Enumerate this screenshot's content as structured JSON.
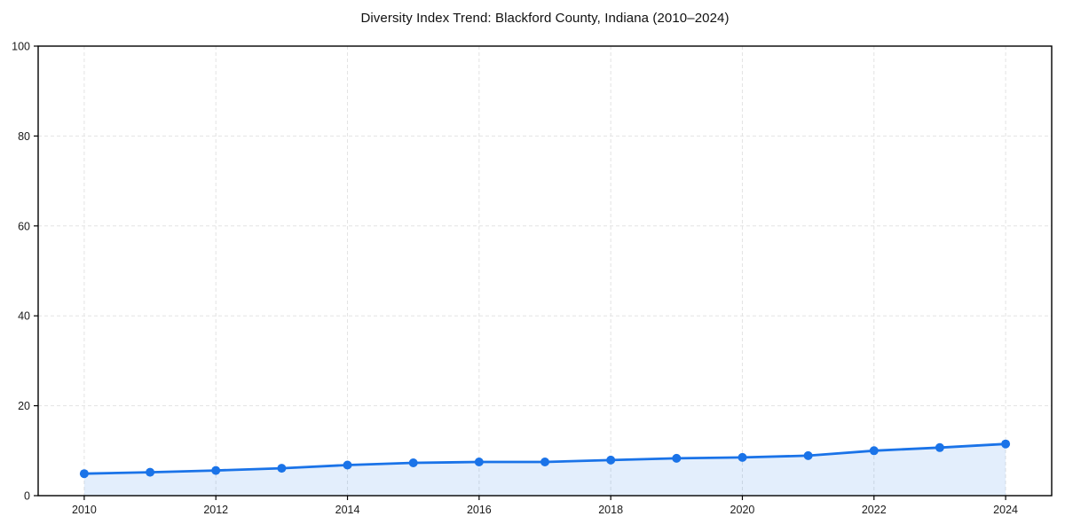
{
  "chart_data": {
    "type": "line",
    "title": "Diversity Index Trend: Blackford County, Indiana (2010–2024)",
    "series_name": "Diversity Index",
    "x": [
      2010,
      2011,
      2012,
      2013,
      2014,
      2015,
      2016,
      2017,
      2018,
      2019,
      2020,
      2021,
      2022,
      2023,
      2024
    ],
    "values": [
      4.9,
      5.2,
      5.6,
      6.1,
      6.8,
      7.3,
      7.5,
      7.5,
      7.9,
      8.3,
      8.5,
      8.9,
      10.0,
      10.7,
      11.5
    ],
    "xlabel": "",
    "ylabel": "",
    "xticks": [
      2010,
      2012,
      2014,
      2016,
      2018,
      2020,
      2022,
      2024
    ],
    "yticks": [
      0,
      20,
      40,
      60,
      80,
      100
    ],
    "xlim": [
      2009.3,
      2024.7
    ],
    "ylim": [
      0,
      100
    ],
    "grid": "dashed-both-axes",
    "legend": "none",
    "marker": "circle",
    "area_fill": true,
    "colors": {
      "line": "#1a73e8",
      "marker": "#1a73e8",
      "fill": "rgba(26,115,232,0.12)",
      "grid": "#e3e3e3",
      "axis": "#000000",
      "tick_label": "#1a1a1a",
      "title": "#111111",
      "background": "#ffffff"
    }
  }
}
